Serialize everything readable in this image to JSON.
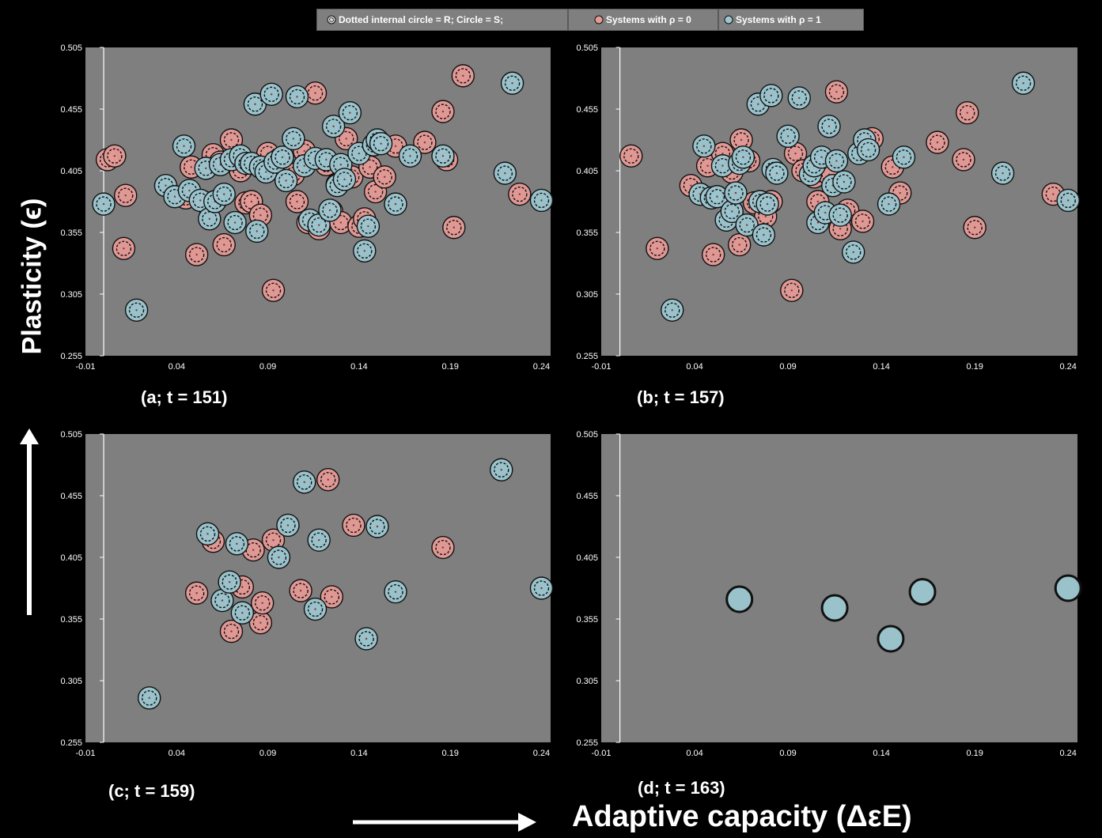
{
  "legend": {
    "item1": "Dotted internal circle = R;  Circle = S;",
    "item2": "Systems with ρ = 0",
    "item3": "Systems with ρ = 1"
  },
  "axes": {
    "ylabel": "Plasticity (ϵ)",
    "xlabel": "Adaptive capacity (ΔεE)"
  },
  "colors": {
    "background": "#000000",
    "plot_bg": "#7f7f7f",
    "rho0": "#e69a96",
    "rho1": "#9cc6d0",
    "outline": "#111111"
  },
  "chart_data": [
    {
      "type": "scatter",
      "panel_label": "(a; t = 151)",
      "xlim": [
        -0.01,
        0.245
      ],
      "ylim": [
        0.255,
        0.505
      ],
      "xticks": [
        "-0.01",
        "0.04",
        "0.09",
        "0.14",
        "0.19",
        "0.24"
      ],
      "yticks": [
        "0.255",
        "0.305",
        "0.355",
        "0.405",
        "0.455",
        "0.505"
      ],
      "series": [
        {
          "name": "Systems with ρ = 0",
          "points": [
            [
              0.002,
              0.414
            ],
            [
              0.006,
              0.417
            ],
            [
              0.012,
              0.385
            ],
            [
              0.011,
              0.342
            ],
            [
              0.045,
              0.383
            ],
            [
              0.048,
              0.408
            ],
            [
              0.051,
              0.337
            ],
            [
              0.056,
              0.379
            ],
            [
              0.06,
              0.418
            ],
            [
              0.064,
              0.412
            ],
            [
              0.066,
              0.345
            ],
            [
              0.07,
              0.43
            ],
            [
              0.075,
              0.405
            ],
            [
              0.078,
              0.379
            ],
            [
              0.081,
              0.38
            ],
            [
              0.086,
              0.369
            ],
            [
              0.09,
              0.419
            ],
            [
              0.093,
              0.308
            ],
            [
              0.096,
              0.414
            ],
            [
              0.1,
              0.398
            ],
            [
              0.104,
              0.402
            ],
            [
              0.106,
              0.38
            ],
            [
              0.11,
              0.421
            ],
            [
              0.112,
              0.363
            ],
            [
              0.116,
              0.468
            ],
            [
              0.118,
              0.358
            ],
            [
              0.122,
              0.41
            ],
            [
              0.125,
              0.372
            ],
            [
              0.128,
              0.394
            ],
            [
              0.13,
              0.363
            ],
            [
              0.133,
              0.431
            ],
            [
              0.136,
              0.4
            ],
            [
              0.14,
              0.36
            ],
            [
              0.143,
              0.366
            ],
            [
              0.146,
              0.408
            ],
            [
              0.149,
              0.388
            ],
            [
              0.154,
              0.4
            ],
            [
              0.16,
              0.425
            ],
            [
              0.176,
              0.428
            ],
            [
              0.186,
              0.453
            ],
            [
              0.188,
              0.414
            ],
            [
              0.192,
              0.359
            ],
            [
              0.197,
              0.482
            ],
            [
              0.228,
              0.386
            ]
          ]
        },
        {
          "name": "Systems with ρ = 1",
          "points": [
            [
              0.0,
              0.378
            ],
            [
              0.018,
              0.292
            ],
            [
              0.034,
              0.393
            ],
            [
              0.039,
              0.384
            ],
            [
              0.044,
              0.425
            ],
            [
              0.047,
              0.389
            ],
            [
              0.053,
              0.381
            ],
            [
              0.056,
              0.407
            ],
            [
              0.058,
              0.366
            ],
            [
              0.061,
              0.38
            ],
            [
              0.064,
              0.41
            ],
            [
              0.066,
              0.386
            ],
            [
              0.07,
              0.414
            ],
            [
              0.072,
              0.363
            ],
            [
              0.075,
              0.417
            ],
            [
              0.078,
              0.411
            ],
            [
              0.081,
              0.411
            ],
            [
              0.083,
              0.459
            ],
            [
              0.084,
              0.356
            ],
            [
              0.086,
              0.408
            ],
            [
              0.089,
              0.404
            ],
            [
              0.092,
              0.467
            ],
            [
              0.094,
              0.412
            ],
            [
              0.098,
              0.416
            ],
            [
              0.1,
              0.397
            ],
            [
              0.104,
              0.431
            ],
            [
              0.106,
              0.465
            ],
            [
              0.11,
              0.409
            ],
            [
              0.113,
              0.365
            ],
            [
              0.116,
              0.415
            ],
            [
              0.118,
              0.361
            ],
            [
              0.122,
              0.414
            ],
            [
              0.124,
              0.373
            ],
            [
              0.126,
              0.441
            ],
            [
              0.128,
              0.393
            ],
            [
              0.13,
              0.41
            ],
            [
              0.132,
              0.398
            ],
            [
              0.135,
              0.452
            ],
            [
              0.14,
              0.419
            ],
            [
              0.143,
              0.34
            ],
            [
              0.145,
              0.36
            ],
            [
              0.148,
              0.426
            ],
            [
              0.15,
              0.43
            ],
            [
              0.152,
              0.427
            ],
            [
              0.16,
              0.378
            ],
            [
              0.168,
              0.417
            ],
            [
              0.186,
              0.417
            ],
            [
              0.22,
              0.403
            ],
            [
              0.224,
              0.476
            ],
            [
              0.24,
              0.381
            ]
          ]
        }
      ]
    },
    {
      "type": "scatter",
      "panel_label": "(b; t = 157)",
      "xlim": [
        -0.01,
        0.245
      ],
      "ylim": [
        0.255,
        0.505
      ],
      "xticks": [
        "-0.01",
        "0.04",
        "0.09",
        "0.14",
        "0.19",
        "0.24"
      ],
      "yticks": [
        "0.255",
        "0.305",
        "0.355",
        "0.405",
        "0.455",
        "0.505"
      ],
      "series": [
        {
          "name": "Systems with ρ = 0",
          "points": [
            [
              0.006,
              0.417
            ],
            [
              0.02,
              0.342
            ],
            [
              0.038,
              0.393
            ],
            [
              0.047,
              0.409
            ],
            [
              0.05,
              0.337
            ],
            [
              0.055,
              0.419
            ],
            [
              0.06,
              0.404
            ],
            [
              0.064,
              0.345
            ],
            [
              0.065,
              0.43
            ],
            [
              0.069,
              0.413
            ],
            [
              0.072,
              0.379
            ],
            [
              0.078,
              0.368
            ],
            [
              0.081,
              0.38
            ],
            [
              0.092,
              0.308
            ],
            [
              0.094,
              0.419
            ],
            [
              0.098,
              0.405
            ],
            [
              0.104,
              0.4
            ],
            [
              0.106,
              0.38
            ],
            [
              0.112,
              0.402
            ],
            [
              0.116,
              0.469
            ],
            [
              0.118,
              0.358
            ],
            [
              0.122,
              0.373
            ],
            [
              0.13,
              0.364
            ],
            [
              0.135,
              0.431
            ],
            [
              0.146,
              0.408
            ],
            [
              0.15,
              0.387
            ],
            [
              0.17,
              0.428
            ],
            [
              0.184,
              0.414
            ],
            [
              0.186,
              0.452
            ],
            [
              0.19,
              0.359
            ],
            [
              0.232,
              0.386
            ]
          ]
        },
        {
          "name": "Systems with ρ = 1",
          "points": [
            [
              0.028,
              0.292
            ],
            [
              0.043,
              0.386
            ],
            [
              0.045,
              0.425
            ],
            [
              0.049,
              0.383
            ],
            [
              0.052,
              0.384
            ],
            [
              0.055,
              0.409
            ],
            [
              0.057,
              0.365
            ],
            [
              0.06,
              0.372
            ],
            [
              0.062,
              0.387
            ],
            [
              0.064,
              0.411
            ],
            [
              0.066,
              0.416
            ],
            [
              0.068,
              0.361
            ],
            [
              0.074,
              0.459
            ],
            [
              0.075,
              0.38
            ],
            [
              0.077,
              0.353
            ],
            [
              0.079,
              0.378
            ],
            [
              0.081,
              0.466
            ],
            [
              0.082,
              0.406
            ],
            [
              0.084,
              0.403
            ],
            [
              0.09,
              0.433
            ],
            [
              0.096,
              0.464
            ],
            [
              0.102,
              0.402
            ],
            [
              0.104,
              0.409
            ],
            [
              0.106,
              0.363
            ],
            [
              0.108,
              0.416
            ],
            [
              0.11,
              0.371
            ],
            [
              0.112,
              0.441
            ],
            [
              0.114,
              0.393
            ],
            [
              0.116,
              0.413
            ],
            [
              0.118,
              0.369
            ],
            [
              0.12,
              0.396
            ],
            [
              0.125,
              0.339
            ],
            [
              0.128,
              0.419
            ],
            [
              0.131,
              0.43
            ],
            [
              0.133,
              0.422
            ],
            [
              0.144,
              0.378
            ],
            [
              0.152,
              0.416
            ],
            [
              0.205,
              0.403
            ],
            [
              0.216,
              0.476
            ],
            [
              0.24,
              0.381
            ]
          ]
        }
      ]
    },
    {
      "type": "scatter",
      "panel_label": "(c; t = 159)",
      "xlim": [
        -0.01,
        0.245
      ],
      "ylim": [
        0.255,
        0.505
      ],
      "xticks": [
        "-0.01",
        "0.04",
        "0.09",
        "0.14",
        "0.19",
        "0.24"
      ],
      "yticks": [
        "0.255",
        "0.305",
        "0.355",
        "0.405",
        "0.455",
        "0.505"
      ],
      "series": [
        {
          "name": "Systems with ρ = 0",
          "points": [
            [
              0.051,
              0.376
            ],
            [
              0.06,
              0.418
            ],
            [
              0.07,
              0.345
            ],
            [
              0.076,
              0.381
            ],
            [
              0.082,
              0.411
            ],
            [
              0.086,
              0.352
            ],
            [
              0.087,
              0.368
            ],
            [
              0.093,
              0.419
            ],
            [
              0.108,
              0.378
            ],
            [
              0.123,
              0.468
            ],
            [
              0.125,
              0.373
            ],
            [
              0.137,
              0.431
            ],
            [
              0.186,
              0.413
            ]
          ]
        },
        {
          "name": "Systems with ρ = 1",
          "points": [
            [
              0.025,
              0.291
            ],
            [
              0.057,
              0.424
            ],
            [
              0.065,
              0.37
            ],
            [
              0.069,
              0.385
            ],
            [
              0.073,
              0.416
            ],
            [
              0.076,
              0.36
            ],
            [
              0.096,
              0.405
            ],
            [
              0.101,
              0.431
            ],
            [
              0.11,
              0.466
            ],
            [
              0.116,
              0.363
            ],
            [
              0.118,
              0.419
            ],
            [
              0.144,
              0.339
            ],
            [
              0.15,
              0.43
            ],
            [
              0.16,
              0.377
            ],
            [
              0.218,
              0.476
            ],
            [
              0.24,
              0.38
            ]
          ]
        }
      ]
    },
    {
      "type": "scatter",
      "panel_label": "(d; t = 163)",
      "xlim": [
        -0.01,
        0.245
      ],
      "ylim": [
        0.255,
        0.505
      ],
      "xticks": [
        "-0.01",
        "0.04",
        "0.09",
        "0.14",
        "0.19",
        "0.24"
      ],
      "yticks": [
        "0.255",
        "0.305",
        "0.355",
        "0.405",
        "0.455",
        "0.505"
      ],
      "series": [
        {
          "name": "Systems with ρ = 0",
          "points": []
        },
        {
          "name": "Systems with ρ = 1",
          "points": [
            [
              0.064,
              0.371
            ],
            [
              0.115,
              0.364
            ],
            [
              0.145,
              0.339
            ],
            [
              0.162,
              0.377
            ],
            [
              0.24,
              0.38
            ]
          ]
        }
      ]
    }
  ]
}
